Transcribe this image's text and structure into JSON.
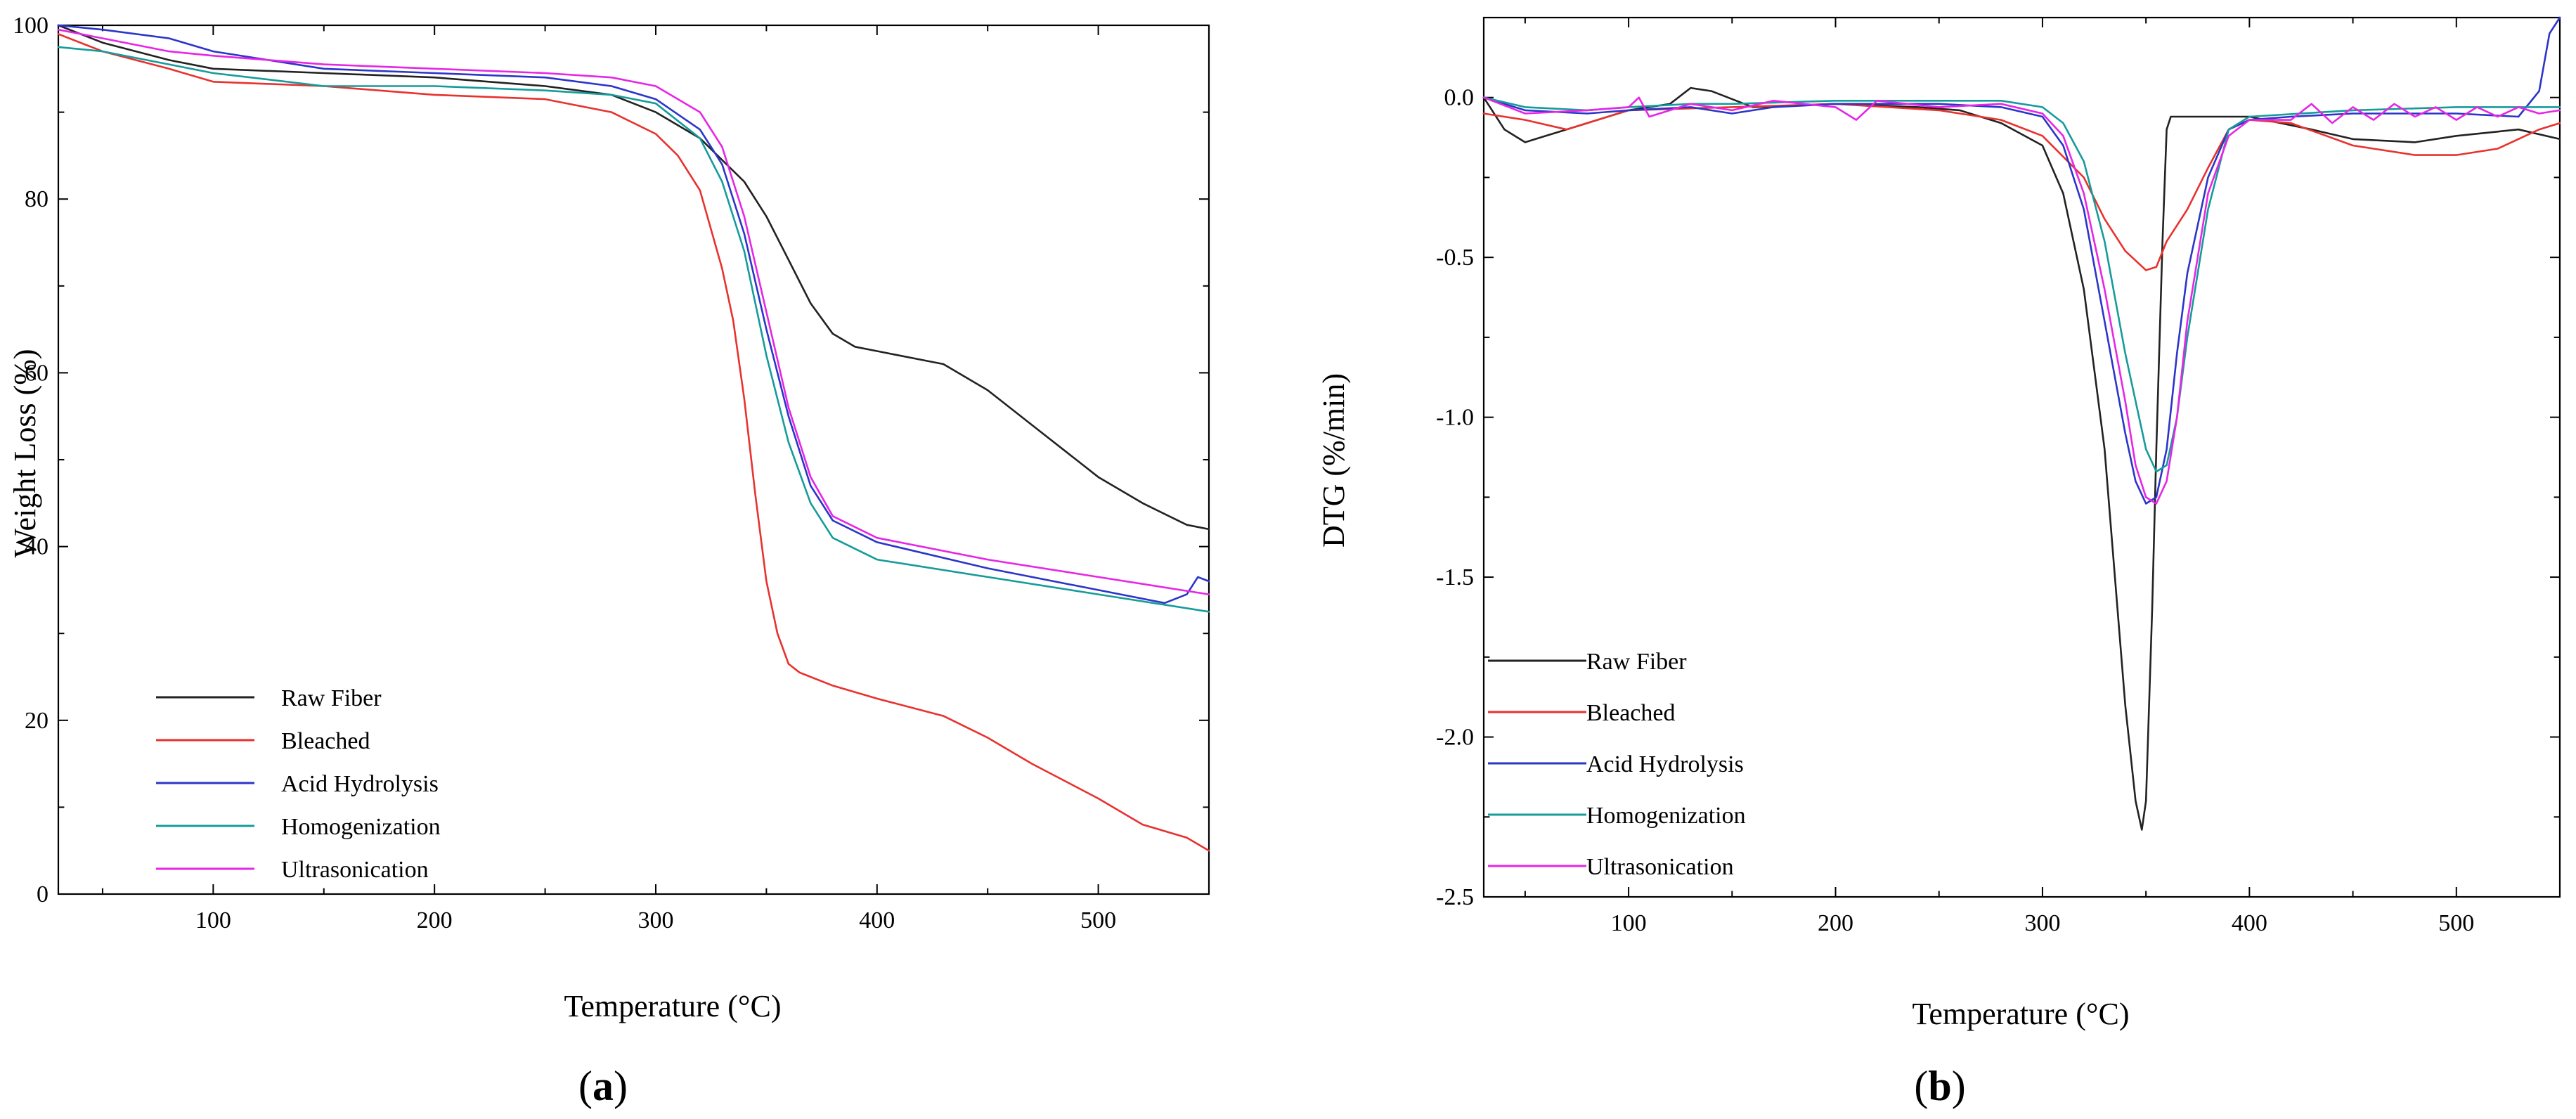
{
  "chart_data": [
    {
      "type": "line",
      "panel_label": "a",
      "xlabel": "Temperature",
      "xlabel_unit": "°C",
      "ylabel": "Weight Loss (%)",
      "xlim": [
        30,
        550
      ],
      "ylim": [
        0,
        100
      ],
      "xticks": [
        100,
        200,
        300,
        400,
        500
      ],
      "yticks": [
        0,
        20,
        40,
        60,
        80,
        100
      ],
      "legend_position": "bottom-left",
      "series": [
        {
          "name": "Raw Fiber",
          "color": "#222222",
          "x": [
            30,
            50,
            80,
            100,
            150,
            200,
            250,
            280,
            300,
            320,
            340,
            350,
            360,
            370,
            380,
            390,
            400,
            420,
            430,
            450,
            470,
            500,
            520,
            540,
            550
          ],
          "y": [
            100,
            98,
            96,
            95,
            94.5,
            94,
            93,
            92,
            90,
            87,
            82,
            78,
            73,
            68,
            64.5,
            63,
            62.5,
            61.5,
            61,
            58,
            54,
            48,
            45,
            42.5,
            42
          ]
        },
        {
          "name": "Bleached",
          "color": "#e8322e",
          "x": [
            30,
            50,
            80,
            100,
            150,
            200,
            250,
            280,
            300,
            310,
            320,
            330,
            335,
            340,
            345,
            350,
            355,
            360,
            365,
            380,
            400,
            430,
            450,
            470,
            500,
            520,
            540,
            550
          ],
          "y": [
            99,
            97,
            95,
            93.5,
            93,
            92,
            91.5,
            90,
            87.5,
            85,
            81,
            72,
            66,
            57,
            46,
            36,
            30,
            26.5,
            25.5,
            24,
            22.5,
            20.5,
            18,
            15,
            11,
            8,
            6.5,
            5
          ]
        },
        {
          "name": "Acid Hydrolysis",
          "color": "#2b35c9",
          "x": [
            30,
            50,
            80,
            100,
            150,
            200,
            250,
            280,
            300,
            320,
            330,
            340,
            350,
            360,
            370,
            380,
            400,
            450,
            500,
            530,
            540,
            545,
            550
          ],
          "y": [
            100,
            99.5,
            98.5,
            97,
            95,
            94.5,
            94,
            93,
            91.5,
            88,
            84,
            76,
            65,
            55,
            47,
            43,
            40.5,
            37.5,
            35,
            33.5,
            34.5,
            36.5,
            36
          ]
        },
        {
          "name": "Homogenization",
          "color": "#169b9b",
          "x": [
            30,
            50,
            80,
            100,
            150,
            200,
            250,
            280,
            300,
            320,
            330,
            340,
            350,
            360,
            370,
            380,
            400,
            450,
            500,
            550
          ],
          "y": [
            97.5,
            97,
            95.5,
            94.5,
            93,
            93,
            92.5,
            92,
            91,
            87,
            82,
            74,
            62,
            52,
            45,
            41,
            38.5,
            36.5,
            34.5,
            32.5
          ]
        },
        {
          "name": "Ultrasonication",
          "color": "#e626e6",
          "x": [
            30,
            50,
            80,
            100,
            150,
            200,
            250,
            280,
            300,
            320,
            330,
            340,
            350,
            360,
            370,
            380,
            400,
            450,
            500,
            550
          ],
          "y": [
            99.5,
            98.5,
            97,
            96.5,
            95.5,
            95,
            94.5,
            94,
            93,
            90,
            86,
            78,
            67,
            56,
            48,
            43.5,
            41,
            38.5,
            36.5,
            34.5
          ]
        }
      ]
    },
    {
      "type": "line",
      "panel_label": "b",
      "xlabel": "Temperature",
      "xlabel_unit": "°C",
      "ylabel": "DTG (%/min)",
      "xlim": [
        30,
        550
      ],
      "ylim": [
        -2.5,
        0.25
      ],
      "xticks": [
        100,
        200,
        300,
        400,
        500
      ],
      "yticks": [
        0.0,
        -0.5,
        -1.0,
        -1.5,
        -2.0,
        -2.5
      ],
      "ytick_labels": [
        "0.0",
        "-0.5",
        "-1.0",
        "-1.5",
        "-2.0",
        "-2.5"
      ],
      "legend_position": "bottom-left",
      "series": [
        {
          "name": "Raw Fiber",
          "color": "#222222",
          "x": [
            30,
            40,
            50,
            60,
            70,
            80,
            100,
            120,
            130,
            140,
            160,
            200,
            240,
            260,
            280,
            300,
            310,
            320,
            330,
            335,
            340,
            345,
            348,
            350,
            353,
            355,
            358,
            360,
            362,
            365,
            370,
            400,
            430,
            450,
            480,
            500,
            530,
            550
          ],
          "y": [
            0.0,
            -0.1,
            -0.14,
            -0.12,
            -0.1,
            -0.08,
            -0.04,
            -0.02,
            0.03,
            0.02,
            -0.03,
            -0.02,
            -0.03,
            -0.04,
            -0.08,
            -0.15,
            -0.3,
            -0.6,
            -1.1,
            -1.5,
            -1.9,
            -2.2,
            -2.29,
            -2.2,
            -1.6,
            -1.1,
            -0.45,
            -0.1,
            -0.06,
            -0.06,
            -0.06,
            -0.06,
            -0.1,
            -0.13,
            -0.14,
            -0.12,
            -0.1,
            -0.13
          ]
        },
        {
          "name": "Bleached",
          "color": "#e8322e",
          "x": [
            30,
            50,
            70,
            90,
            100,
            150,
            200,
            250,
            280,
            300,
            320,
            330,
            340,
            350,
            355,
            360,
            370,
            380,
            390,
            400,
            420,
            450,
            480,
            500,
            520,
            540,
            550
          ],
          "y": [
            -0.05,
            -0.07,
            -0.1,
            -0.06,
            -0.04,
            -0.03,
            -0.02,
            -0.04,
            -0.07,
            -0.12,
            -0.25,
            -0.38,
            -0.48,
            -0.54,
            -0.53,
            -0.45,
            -0.35,
            -0.22,
            -0.1,
            -0.07,
            -0.08,
            -0.15,
            -0.18,
            -0.18,
            -0.16,
            -0.1,
            -0.08
          ]
        },
        {
          "name": "Acid Hydrolysis",
          "color": "#2b35c9",
          "x": [
            30,
            50,
            80,
            100,
            130,
            150,
            170,
            200,
            250,
            280,
            300,
            310,
            320,
            330,
            340,
            345,
            350,
            355,
            360,
            365,
            370,
            380,
            390,
            400,
            420,
            450,
            500,
            530,
            540,
            545,
            550
          ],
          "y": [
            0.0,
            -0.04,
            -0.05,
            -0.04,
            -0.03,
            -0.05,
            -0.03,
            -0.02,
            -0.02,
            -0.03,
            -0.06,
            -0.15,
            -0.35,
            -0.7,
            -1.05,
            -1.2,
            -1.27,
            -1.25,
            -1.1,
            -0.8,
            -0.55,
            -0.25,
            -0.1,
            -0.07,
            -0.06,
            -0.05,
            -0.05,
            -0.06,
            0.02,
            0.2,
            0.25
          ]
        },
        {
          "name": "Homogenization",
          "color": "#169b9b",
          "x": [
            30,
            50,
            80,
            100,
            130,
            150,
            200,
            250,
            280,
            300,
            310,
            320,
            330,
            340,
            350,
            355,
            360,
            365,
            370,
            380,
            390,
            400,
            450,
            500,
            550
          ],
          "y": [
            0.0,
            -0.03,
            -0.04,
            -0.03,
            -0.02,
            -0.02,
            -0.01,
            -0.01,
            -0.01,
            -0.03,
            -0.08,
            -0.2,
            -0.45,
            -0.8,
            -1.1,
            -1.17,
            -1.15,
            -1.0,
            -0.75,
            -0.35,
            -0.1,
            -0.06,
            -0.04,
            -0.03,
            -0.03
          ]
        },
        {
          "name": "Ultrasonication",
          "color": "#e626e6",
          "x": [
            30,
            50,
            80,
            100,
            105,
            110,
            130,
            150,
            170,
            200,
            210,
            220,
            250,
            280,
            300,
            310,
            320,
            330,
            340,
            345,
            350,
            355,
            360,
            365,
            370,
            380,
            390,
            400,
            420,
            430,
            440,
            450,
            460,
            470,
            480,
            490,
            500,
            510,
            520,
            530,
            540,
            550
          ],
          "y": [
            0.0,
            -0.05,
            -0.04,
            -0.03,
            0.0,
            -0.06,
            -0.02,
            -0.04,
            -0.01,
            -0.03,
            -0.07,
            -0.01,
            -0.03,
            -0.02,
            -0.05,
            -0.12,
            -0.3,
            -0.6,
            -0.95,
            -1.15,
            -1.25,
            -1.27,
            -1.2,
            -1.0,
            -0.7,
            -0.3,
            -0.12,
            -0.07,
            -0.07,
            -0.02,
            -0.08,
            -0.03,
            -0.07,
            -0.02,
            -0.06,
            -0.03,
            -0.07,
            -0.03,
            -0.06,
            -0.03,
            -0.05,
            -0.04
          ]
        }
      ]
    }
  ]
}
